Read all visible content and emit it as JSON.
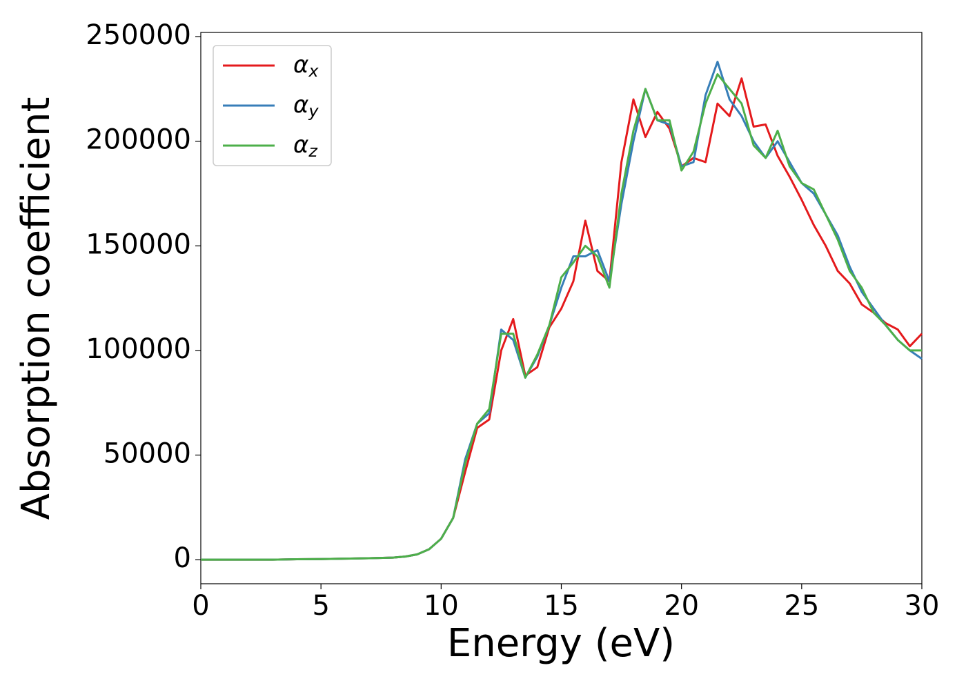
{
  "chart_data": {
    "type": "line",
    "xlabel": "Energy (eV)",
    "ylabel": "Absorption coefficient",
    "x": [
      0,
      1,
      2,
      3,
      4,
      5,
      6,
      7,
      8,
      8.5,
      9,
      9.5,
      10,
      10.5,
      11,
      11.5,
      12,
      12.5,
      13,
      13.5,
      14,
      14.5,
      15,
      15.5,
      16,
      16.5,
      17,
      17.5,
      18,
      18.5,
      19,
      19.5,
      20,
      20.5,
      21,
      21.5,
      22,
      22.5,
      23,
      23.5,
      24,
      24.5,
      25,
      25.5,
      26,
      26.5,
      27,
      27.5,
      28,
      28.5,
      29,
      29.5,
      30
    ],
    "series": [
      {
        "name": "αx",
        "color": "#e41a1c",
        "values": [
          0,
          0,
          0,
          0,
          200,
          300,
          500,
          700,
          1000,
          1500,
          2500,
          5000,
          10000,
          20000,
          42000,
          63000,
          67000,
          100000,
          115000,
          88000,
          92000,
          111000,
          120000,
          133000,
          162000,
          138000,
          133000,
          190000,
          220000,
          202000,
          214000,
          206000,
          188000,
          192000,
          190000,
          218000,
          212000,
          230000,
          207000,
          208000,
          193000,
          183000,
          172000,
          160000,
          150000,
          138000,
          132000,
          122000,
          118000,
          113000,
          110000,
          102000,
          108000
        ]
      },
      {
        "name": "αy",
        "color": "#377eb8",
        "values": [
          0,
          0,
          0,
          0,
          200,
          300,
          500,
          700,
          1000,
          1500,
          2500,
          5000,
          10000,
          20000,
          48000,
          65000,
          70000,
          110000,
          105000,
          87000,
          97000,
          112000,
          130000,
          145000,
          145000,
          148000,
          133000,
          170000,
          200000,
          225000,
          210000,
          208000,
          188000,
          190000,
          222000,
          238000,
          220000,
          212000,
          200000,
          192000,
          200000,
          190000,
          180000,
          175000,
          165000,
          155000,
          140000,
          128000,
          120000,
          112000,
          105000,
          100000,
          96000
        ]
      },
      {
        "name": "αz",
        "color": "#4daf4a",
        "values": [
          0,
          0,
          0,
          0,
          200,
          300,
          500,
          700,
          1000,
          1500,
          2500,
          5000,
          10000,
          20000,
          46000,
          65000,
          72000,
          108000,
          108000,
          87000,
          98000,
          112000,
          135000,
          142000,
          150000,
          145000,
          130000,
          175000,
          205000,
          225000,
          210000,
          210000,
          186000,
          195000,
          218000,
          232000,
          225000,
          218000,
          198000,
          192000,
          205000,
          188000,
          180000,
          177000,
          165000,
          153000,
          138000,
          130000,
          118000,
          112000,
          105000,
          100000,
          100000
        ]
      }
    ],
    "xlim": [
      0,
      30
    ],
    "xticks": [
      0,
      5,
      10,
      15,
      20,
      25,
      30
    ],
    "ylim": [
      -11500,
      252000
    ],
    "yticks": [
      0,
      50000,
      100000,
      150000,
      200000,
      250000
    ],
    "legend": "upper left",
    "grid": false
  }
}
